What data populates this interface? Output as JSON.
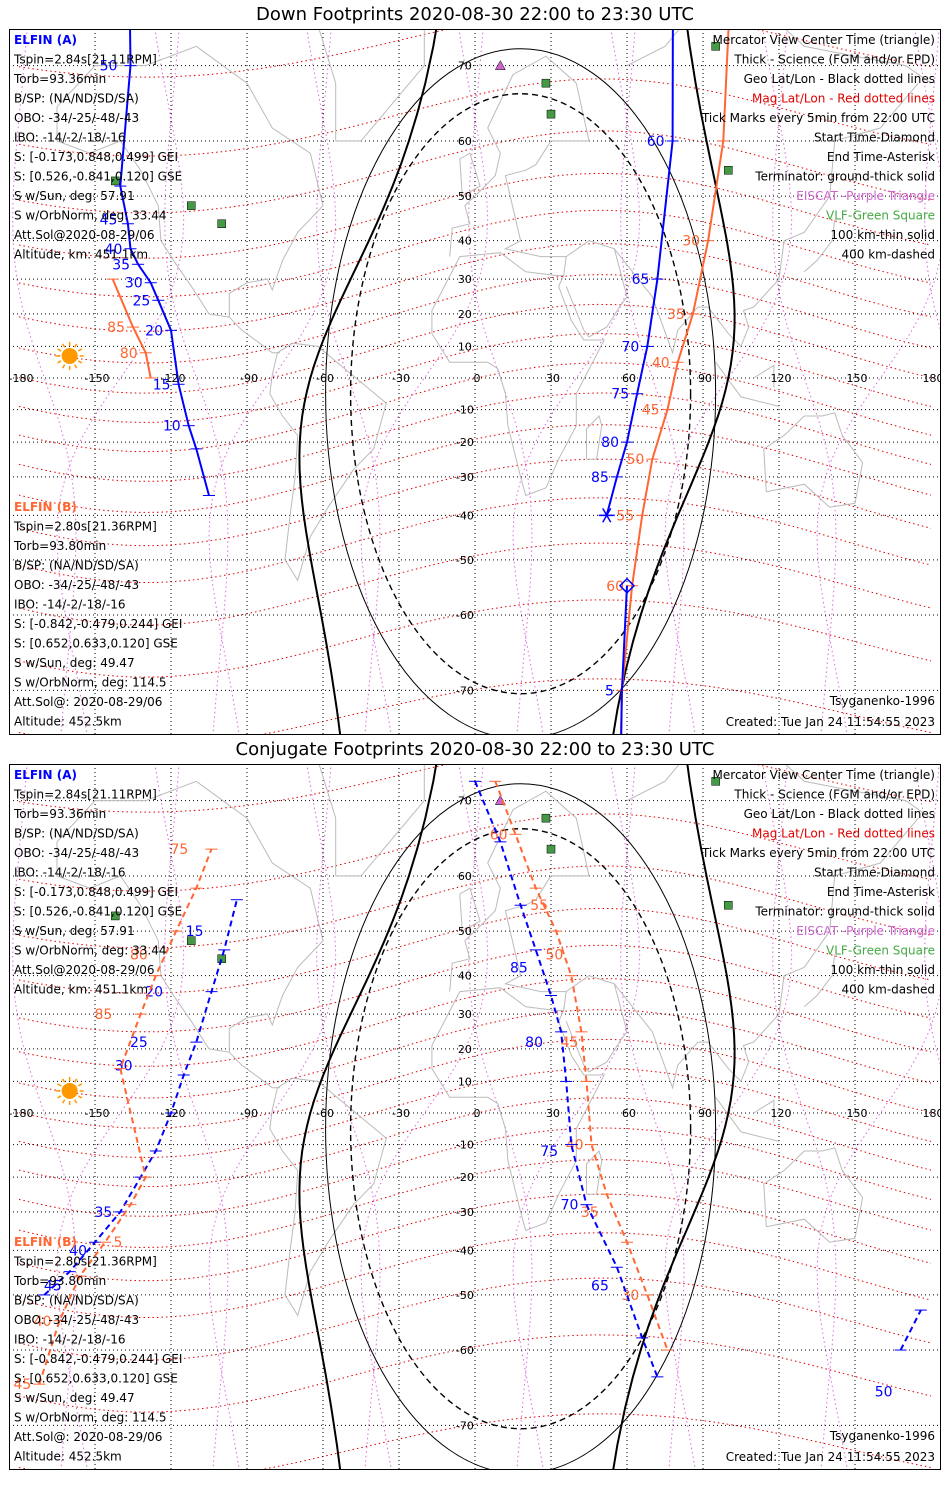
{
  "panels": [
    {
      "id": "down",
      "title": "Down Footprints 2020-08-30 22:00 to 23:30 UTC",
      "sat_a": {
        "header": "ELFIN (A)",
        "lines": [
          "Tspin=2.84s[21.11RPM]",
          "Torb=93.36min",
          "B/SP: (NA/ND/SD/SA)",
          "OBO: -34/-25/-48/-43",
          "IBO: -14/-2/-18/-16",
          "S: [-0.173,0.848,0.499] GEI",
          "S: [0.526,-0.841,0.120] GSE",
          "S w/Sun, deg: 57.91",
          "S w/OrbNorm, deg: 33.44",
          "Att.Sol@2020-08-29/06",
          "Altitude, km: 451.1km"
        ]
      },
      "sat_b": {
        "header": "ELFIN (B)",
        "lines": [
          "Tspin=2.80s[21.36RPM]",
          "Torb=93.80min",
          "B/SP: (NA/ND/SD/SA)",
          "OBO: -34/-25/-48/-43",
          "IBO: -14/-2/-18/-16",
          "S: [-0.842,-0.479,0.244] GEI",
          "S: [0.652,0.633,0.120] GSE",
          "S w/Sun, deg: 49.47",
          "S w/OrbNorm, deg: 114.5",
          "Att.Sol@: 2020-08-29/06",
          "Altitude: 452.5km"
        ]
      },
      "track_a": {
        "points": [
          [
            -138,
            88
          ],
          [
            -136,
            70
          ],
          [
            -140,
            52
          ],
          [
            -137,
            44
          ],
          [
            -136,
            38
          ],
          [
            -133,
            34
          ],
          [
            -128,
            29
          ],
          [
            -125,
            24
          ],
          [
            -120,
            15
          ],
          [
            -117,
            -2
          ],
          [
            -113,
            -15
          ],
          [
            -110,
            -22
          ],
          [
            -105,
            -35
          ]
        ],
        "labels": [
          [
            "50",
            -138,
            70
          ],
          [
            "45",
            -138,
            45
          ],
          [
            "40",
            -136,
            38
          ],
          [
            "35",
            -133,
            34
          ],
          [
            "30",
            -128,
            29
          ],
          [
            "25",
            -125,
            24
          ],
          [
            "20",
            -120,
            15
          ],
          [
            "15",
            -117,
            -2
          ],
          [
            "10",
            -113,
            -15
          ]
        ]
      },
      "track_b": {
        "points": [
          [
            -143,
            30
          ],
          [
            -135,
            16
          ],
          [
            -130,
            8
          ],
          [
            -128,
            0
          ]
        ],
        "labels": [
          [
            "85",
            -135,
            16
          ],
          [
            "80",
            -130,
            8
          ]
        ]
      },
      "track_a2": {
        "points": [
          [
            52,
            -40
          ],
          [
            56,
            -30
          ],
          [
            60,
            -20
          ],
          [
            64,
            -5
          ],
          [
            68,
            10
          ],
          [
            72,
            30
          ],
          [
            78,
            60
          ],
          [
            84,
            90
          ]
        ],
        "labels": [
          [
            "85",
            56,
            -30
          ],
          [
            "80",
            60,
            -20
          ],
          [
            "75",
            64,
            -5
          ],
          [
            "70",
            68,
            10
          ],
          [
            "65",
            72,
            30
          ],
          [
            "60",
            78,
            60
          ]
        ],
        "start_marker": [
          60,
          -55
        ],
        "end_marker": [
          52,
          -40
        ],
        "seg_a": [
          [
            60,
            -55
          ],
          [
            58,
            -70
          ],
          [
            57,
            -82
          ]
        ],
        "seg_a_labels": [
          [
            "5",
            58,
            -70
          ]
        ]
      },
      "track_b2": {
        "points": [
          [
            56,
            -85
          ],
          [
            58,
            -70
          ],
          [
            62,
            -55
          ],
          [
            66,
            -40
          ],
          [
            70,
            -25
          ],
          [
            76,
            -10
          ],
          [
            80,
            5
          ],
          [
            86,
            20
          ],
          [
            92,
            40
          ],
          [
            98,
            60
          ],
          [
            104,
            85
          ]
        ],
        "labels": [
          [
            "65",
            56,
            -85
          ],
          [
            "60",
            62,
            -55
          ],
          [
            "55",
            66,
            -40
          ],
          [
            "50",
            70,
            -25
          ],
          [
            "45",
            76,
            -10
          ],
          [
            "40",
            80,
            5
          ],
          [
            "35",
            86,
            20
          ],
          [
            "30",
            92,
            40
          ]
        ]
      },
      "credit": "Tsyganenko-1996",
      "created": "Created: Tue Jan 24 11:54:55 2023"
    },
    {
      "id": "conj",
      "title": "Conjugate Footprints 2020-08-30 22:00 to 23:30 UTC",
      "sat_a": {
        "header": "ELFIN (A)",
        "lines": [
          "Tspin=2.84s[21.11RPM]",
          "Torb=93.36min",
          "B/SP: (NA/ND/SD/SA)",
          "OBO: -34/-25/-48/-43",
          "IBO: -14/-2/-18/-16",
          "S: [-0.173,0.848,0.499] GEI",
          "S: [0.526,-0.841,0.120] GSE",
          "S w/Sun, deg: 57.91",
          "S w/OrbNorm, deg: 33.44",
          "Att.Sol@2020-08-29/06",
          "Altitude, km: 451.1km"
        ]
      },
      "sat_b": {
        "header": "ELFIN (B)",
        "lines": [
          "Tspin=2.80s[21.36RPM]",
          "Torb=93.80min",
          "B/SP: (NA/ND/SD/SA)",
          "OBO: -34/-25/-48/-43",
          "IBO: -14/-2/-18/-16",
          "S: [-0.842,-0.479,0.244] GEI",
          "S: [0.652,0.633,0.120] GSE",
          "S w/Sun, deg: 49.47",
          "S w/OrbNorm, deg: 114.5",
          "Att.Sol@: 2020-08-29/06",
          "Altitude: 452.5km"
        ]
      },
      "track_a": {
        "points": [
          [
            -170,
            -50
          ],
          [
            -160,
            -45
          ],
          [
            -150,
            -38
          ],
          [
            -140,
            -30
          ],
          [
            -132,
            -20
          ],
          [
            -126,
            -12
          ],
          [
            -120,
            0
          ],
          [
            -115,
            12
          ],
          [
            -110,
            22
          ],
          [
            -104,
            36
          ],
          [
            -99,
            46
          ],
          [
            -94,
            56
          ]
        ],
        "labels": [
          [
            "45",
            -160,
            -48
          ],
          [
            "40",
            -150,
            -40
          ],
          [
            "35",
            -140,
            -30
          ],
          [
            "30",
            -132,
            15
          ],
          [
            "25",
            -126,
            22
          ],
          [
            "20",
            -120,
            36
          ],
          [
            "15",
            -104,
            50
          ]
        ]
      },
      "track_b": {
        "points": [
          [
            -172,
            -65
          ],
          [
            -164,
            -55
          ],
          [
            -156,
            -46
          ],
          [
            -146,
            -38
          ],
          [
            -136,
            -28
          ],
          [
            -130,
            -20
          ],
          [
            -140,
            14
          ],
          [
            -132,
            30
          ],
          [
            -126,
            40
          ],
          [
            -118,
            50
          ],
          [
            -110,
            58
          ],
          [
            -104,
            64
          ]
        ],
        "labels": [
          [
            "45",
            -172,
            -65
          ],
          [
            "40",
            -164,
            -55
          ],
          [
            "5",
            -136,
            -38
          ],
          [
            "85",
            -140,
            30
          ],
          [
            "80",
            -126,
            45
          ],
          [
            "75",
            -110,
            64
          ]
        ]
      },
      "track_a2": {
        "points": [
          [
            0,
            72
          ],
          [
            10,
            65
          ],
          [
            18,
            55
          ],
          [
            24,
            46
          ],
          [
            30,
            35
          ],
          [
            34,
            25
          ],
          [
            36,
            10
          ],
          [
            38,
            -10
          ],
          [
            44,
            -28
          ],
          [
            56,
            -44
          ],
          [
            66,
            -58
          ],
          [
            72,
            -64
          ]
        ],
        "labels": [
          [
            "85",
            24,
            42
          ],
          [
            "80",
            30,
            22
          ],
          [
            "75",
            36,
            -12
          ],
          [
            "70",
            44,
            -28
          ],
          [
            "65",
            56,
            -48
          ]
        ]
      },
      "track_b2": {
        "points": [
          [
            8,
            72
          ],
          [
            16,
            66
          ],
          [
            24,
            58
          ],
          [
            32,
            50
          ],
          [
            38,
            40
          ],
          [
            42,
            25
          ],
          [
            44,
            10
          ],
          [
            46,
            -10
          ],
          [
            52,
            -25
          ],
          [
            60,
            -38
          ],
          [
            68,
            -50
          ],
          [
            76,
            -60
          ]
        ],
        "labels": [
          [
            "60",
            16,
            66
          ],
          [
            "55",
            32,
            55
          ],
          [
            "50",
            38,
            45
          ],
          [
            "45",
            44,
            22
          ],
          [
            "40",
            46,
            -10
          ],
          [
            "35",
            52,
            -30
          ],
          [
            "30",
            68,
            -50
          ]
        ]
      },
      "track_far": {
        "points": [
          [
            168,
            -60
          ],
          [
            176,
            -53
          ]
        ],
        "labels": [
          [
            "50",
            168,
            -66
          ]
        ]
      },
      "credit": "Tsyganenko-1996",
      "created": "Created: Tue Jan 24 11:54:55 2023"
    }
  ],
  "legend": [
    {
      "text": "Mercator View Center Time (triangle)",
      "color": "#000000"
    },
    {
      "text": "Thick - Science (FGM and/or EPD)",
      "color": "#000000"
    },
    {
      "text": "Geo Lat/Lon - Black dotted lines",
      "color": "#000000"
    },
    {
      "text": "Mag Lat/Lon - Red dotted lines",
      "color": "#e00000"
    },
    {
      "text": "Tick Marks every 5min from 22:00 UTC",
      "color": "#000000"
    },
    {
      "text": "Start Time-Diamond",
      "color": "#000000"
    },
    {
      "text": "End Time-Asterisk",
      "color": "#000000"
    },
    {
      "text": "Terminator: ground-thick solid",
      "color": "#000000"
    },
    {
      "text": "EISCAT -Purple Triangle",
      "color": "#cc66cc"
    },
    {
      "text": "VLF-Green Square",
      "color": "#44aa44"
    },
    {
      "text": "100 km-thin solid",
      "color": "#000000"
    },
    {
      "text": "400 km-dashed",
      "color": "#000000"
    }
  ],
  "axes": {
    "lon_ticks": [
      "-180",
      "-150",
      "-120",
      "-90",
      "-60",
      "-30",
      "0",
      "30",
      "60",
      "90",
      "120",
      "150",
      "180"
    ],
    "lat_ticks": [
      "70",
      "60",
      "50",
      "40",
      "30",
      "20",
      "10",
      "0",
      "-10",
      "-20",
      "-30",
      "-40",
      "-50",
      "-60",
      "-70"
    ],
    "lon_range": [
      -180,
      180
    ],
    "lat_range": [
      -80,
      80
    ]
  },
  "colors": {
    "sat_a": "#0000ff",
    "sat_b": "#ff6633",
    "mag_grid": "#e00000",
    "geo_grid": "#000000",
    "eiscat": "#cc66cc",
    "vlf": "#449944",
    "coast": "#bbbbbb",
    "sun": "#ff9900"
  }
}
